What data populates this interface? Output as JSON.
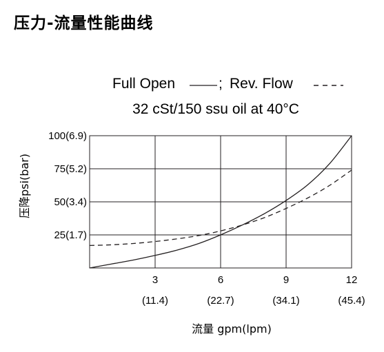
{
  "page": {
    "title": "压力-流量性能曲线"
  },
  "chart_data": {
    "type": "line",
    "title": "压力-流量性能曲线",
    "legend_full_open": "Full Open",
    "legend_separator": "; ",
    "legend_rev_flow": "Rev. Flow",
    "subtitle": "32 cSt/150 ssu oil at 40°C",
    "xlabel": "流量 gpm(lpm)",
    "ylabel": "压降psi(bar)",
    "xlim": [
      0,
      12
    ],
    "ylim": [
      0,
      100
    ],
    "grid": true,
    "x_ticks": [
      {
        "value": 3,
        "label": "3",
        "sub": "(11.4)"
      },
      {
        "value": 6,
        "label": "6",
        "sub": "(22.7)"
      },
      {
        "value": 9,
        "label": "9",
        "sub": "(34.1)"
      },
      {
        "value": 12,
        "label": "12",
        "sub": "(45.4)"
      }
    ],
    "y_ticks": [
      {
        "value": 25,
        "label": "25(1.7)"
      },
      {
        "value": 50,
        "label": "50(3.4)"
      },
      {
        "value": 75,
        "label": "75(5.2)"
      },
      {
        "value": 100,
        "label": "100(6.9)"
      }
    ],
    "series": [
      {
        "name": "Full Open",
        "style": "solid",
        "color": "#231f20",
        "x": [
          0,
          1,
          2,
          3,
          4,
          5,
          6,
          7,
          8,
          9,
          10,
          11,
          12
        ],
        "y": [
          0,
          3,
          6,
          9.5,
          13.5,
          18.5,
          25,
          32.5,
          41,
          51,
          63,
          79,
          100
        ]
      },
      {
        "name": "Rev. Flow",
        "style": "dashed",
        "color": "#231f20",
        "x": [
          0,
          1,
          2,
          3,
          4,
          5,
          6,
          7,
          8,
          9,
          10,
          11,
          12
        ],
        "y": [
          17,
          17.5,
          18.5,
          20,
          22,
          24.5,
          28,
          32.5,
          38,
          45,
          53,
          62.5,
          74
        ]
      }
    ]
  }
}
